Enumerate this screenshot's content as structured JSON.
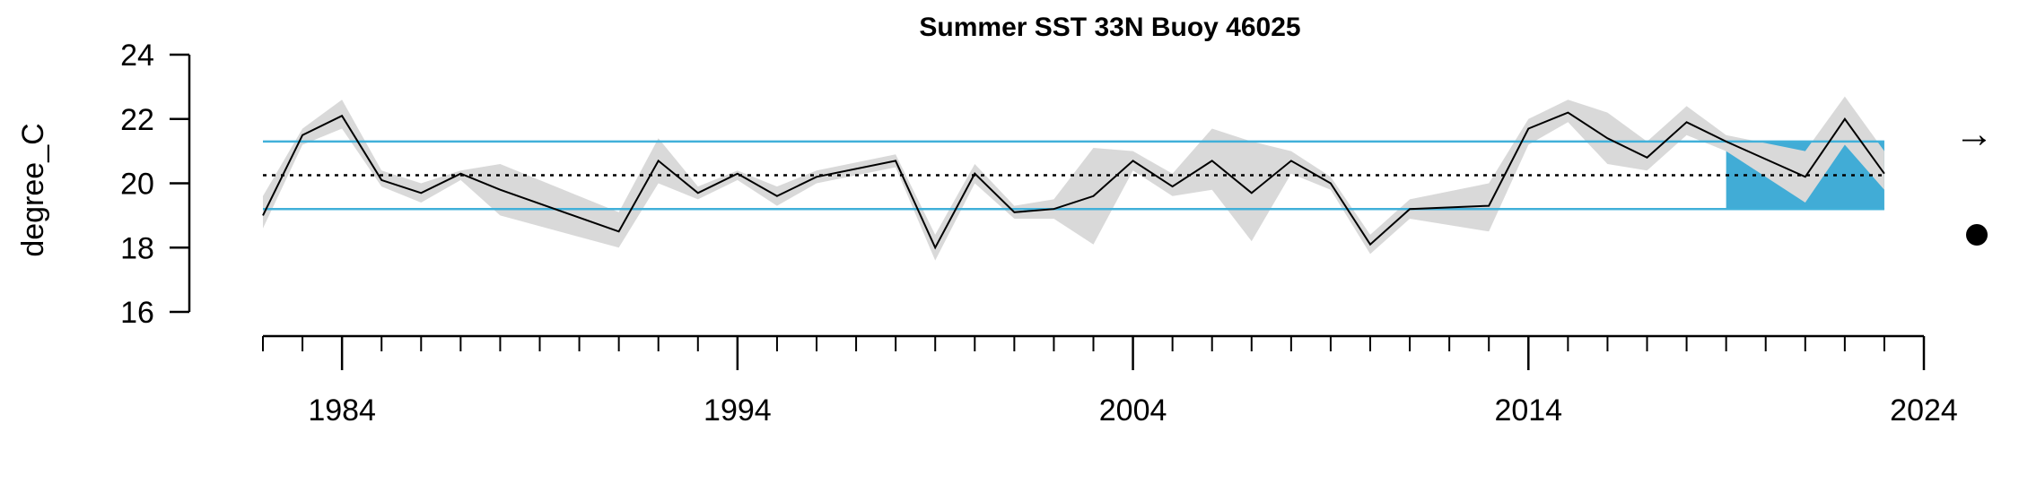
{
  "chart_data": {
    "type": "line",
    "title": "Summer SST 33N Buoy 46025",
    "ylabel": "degree_C",
    "xlabel": "",
    "xlim": [
      1982,
      2024
    ],
    "ylim": [
      16,
      24
    ],
    "x_ticks": [
      1984,
      1994,
      2004,
      2014,
      2024
    ],
    "y_ticks": [
      16,
      18,
      20,
      22,
      24
    ],
    "mean": 20.25,
    "sd_upper": 21.3,
    "sd_lower": 19.2,
    "recent_window": [
      2019,
      2023
    ],
    "trend_symbol": "→",
    "mean_symbol": "●",
    "colors": {
      "line": "#000000",
      "band": "#d9d9d9",
      "sd_lines": "#41b0d9",
      "recent_fill": "#41acd6",
      "mean_line": "#000000"
    },
    "series": [
      {
        "x": [
          1982,
          1983,
          1984,
          1985,
          1986,
          1987,
          1988,
          1991,
          1992,
          1993,
          1994,
          1995,
          1996,
          1998,
          1999,
          2000,
          2001,
          2002,
          2003,
          2004,
          2005,
          2006,
          2007,
          2008,
          2009,
          2010,
          2011,
          2013,
          2014,
          2015,
          2016,
          2017,
          2018,
          2019,
          2021,
          2022,
          2023
        ],
        "y": [
          19.0,
          21.5,
          22.1,
          20.1,
          19.7,
          20.3,
          19.8,
          18.5,
          20.7,
          19.7,
          20.3,
          19.6,
          20.2,
          20.7,
          18.0,
          20.3,
          19.1,
          19.2,
          19.6,
          20.7,
          19.9,
          20.7,
          19.7,
          20.7,
          20.0,
          18.1,
          19.2,
          19.3,
          21.7,
          22.2,
          21.4,
          20.8,
          21.9,
          21.3,
          20.2,
          22.0,
          20.3
        ],
        "upper": [
          19.6,
          21.7,
          22.6,
          20.4,
          20.0,
          20.4,
          20.6,
          19.1,
          21.4,
          19.9,
          20.4,
          19.9,
          20.4,
          20.9,
          18.4,
          20.6,
          19.3,
          19.5,
          21.1,
          21.0,
          20.3,
          21.7,
          21.3,
          21.0,
          20.2,
          18.4,
          19.5,
          20.0,
          22.0,
          22.6,
          22.2,
          21.3,
          22.4,
          21.5,
          21.0,
          22.7,
          21.0
        ],
        "lower": [
          18.6,
          21.2,
          21.7,
          19.9,
          19.4,
          20.1,
          19.0,
          18.0,
          20.0,
          19.5,
          20.1,
          19.3,
          20.0,
          20.5,
          17.6,
          20.0,
          18.9,
          18.9,
          18.1,
          20.4,
          19.6,
          19.8,
          18.2,
          20.3,
          19.8,
          17.8,
          18.9,
          18.5,
          21.2,
          21.9,
          20.6,
          20.4,
          21.5,
          21.0,
          19.4,
          21.2,
          19.8
        ]
      }
    ]
  }
}
